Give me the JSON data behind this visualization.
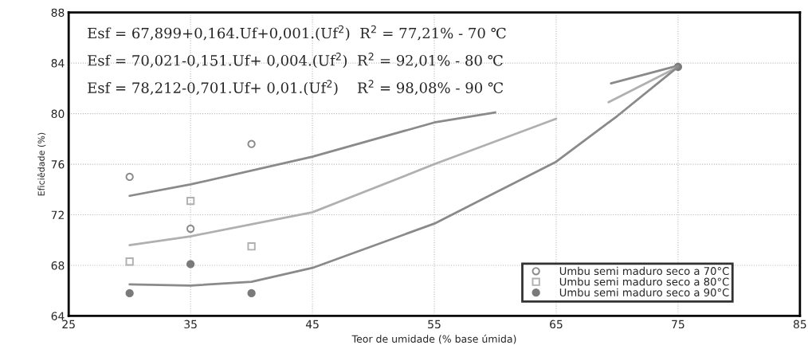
{
  "chart_data": {
    "type": "scatter",
    "xlabel": "Teor de umidade (% base úmida)",
    "ylabel": "Eficiêdade (%)",
    "xlim": [
      25,
      85
    ],
    "xticks": [
      25,
      35,
      45,
      55,
      65,
      75,
      85
    ],
    "ylim": [
      64,
      88
    ],
    "yticks": [
      64,
      68,
      72,
      76,
      80,
      84,
      88
    ],
    "grid": true,
    "legend": "bottom right",
    "annotations": [
      "Esf = 67,899+0,164.Uf+0,001.(Uf$^{2}$)  R$^{2}$ = 77,21% - 70 ℃",
      "Esf = 70,021-0,151.Uf+ 0,004.(Uf$^{2}$)  R$^{2}$ = 92,01% - 80 ℃",
      "Esf = 78,212-0,701.Uf+ 0,01.(Uf$^{2}$)    R$^{2}$ = 98,08% - 90 ℃"
    ],
    "series": [
      {
        "name": "Umbu semi maduro seco a 70°C",
        "color": "#8a8a8a",
        "marker": "circle",
        "x": [
          30,
          35,
          40
        ],
        "values": [
          75.0,
          70.9,
          77.6
        ]
      },
      {
        "name": "Umbu semi maduro seco a 80°C",
        "color": "#b0b0b0",
        "marker": "square",
        "x": [
          30,
          35,
          40
        ],
        "values": [
          68.3,
          73.1,
          69.5
        ]
      },
      {
        "name": "Umbu semi maduro seco a 90°C",
        "color": "#7a7a7a",
        "marker": "circle",
        "x": [
          30,
          35,
          40,
          75
        ],
        "values": [
          65.8,
          68.1,
          65.8,
          83.7
        ]
      },
      {
        "type": "line",
        "color": "#8a8a8a",
        "x": [
          30,
          35,
          45,
          55,
          60,
          65,
          69.5,
          75
        ],
        "values": [
          73.5,
          74.4,
          76.6,
          79.3,
          80.1,
          null,
          82.4,
          83.8
        ]
      },
      {
        "type": "line",
        "color": "#b0b0b0",
        "x": [
          30,
          35,
          45,
          55,
          65,
          67,
          69.3,
          75
        ],
        "values": [
          69.6,
          70.3,
          72.2,
          76.0,
          79.6,
          null,
          80.9,
          83.7
        ]
      },
      {
        "type": "line",
        "color": "#8a8a8a",
        "x": [
          30,
          35,
          40,
          45,
          55,
          65,
          70,
          75
        ],
        "values": [
          66.5,
          66.4,
          66.7,
          67.8,
          71.3,
          76.2,
          79.8,
          83.7
        ]
      }
    ]
  }
}
